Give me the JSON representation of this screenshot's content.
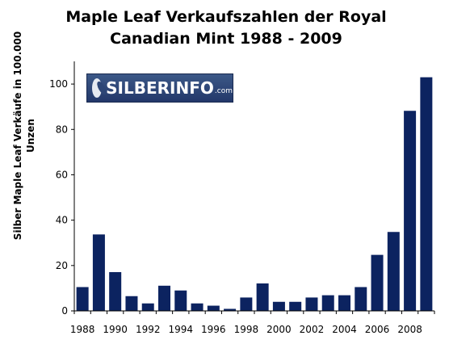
{
  "chart_data": {
    "type": "bar",
    "title_line1": "Maple Leaf Verkaufszahlen der Royal",
    "title_line2": "Canadian Mint 1988 - 2009",
    "ylabel_line1": "Silber Maple Leaf Verkäufe in 100.000",
    "ylabel_line2": "Unzen",
    "xlabel": "",
    "categories": [
      "1988",
      "1989",
      "1990",
      "1991",
      "1992",
      "1993",
      "1994",
      "1995",
      "1996",
      "1997",
      "1998",
      "1999",
      "2000",
      "2001",
      "2002",
      "2003",
      "2004",
      "2005",
      "2006",
      "2007",
      "2008",
      "2009"
    ],
    "values": [
      10.5,
      33.7,
      17.1,
      6.5,
      3.3,
      11.1,
      9.0,
      3.3,
      2.3,
      0.9,
      5.9,
      12.1,
      4.0,
      4.0,
      5.9,
      6.9,
      6.9,
      10.5,
      24.7,
      34.8,
      88.2,
      103.0
    ],
    "ylim": [
      0,
      110
    ],
    "yticks": [
      0,
      20,
      40,
      60,
      80,
      100
    ],
    "xtick_labels": [
      "1988",
      "1990",
      "1992",
      "1994",
      "1996",
      "1998",
      "2000",
      "2002",
      "2004",
      "2006",
      "2008"
    ],
    "grid": false,
    "legend": "none",
    "bar_color": "#0c2360"
  },
  "watermark": {
    "brand": "SILBERINFO",
    "suffix": ".com",
    "icon": "silberinfo-logo-icon"
  }
}
